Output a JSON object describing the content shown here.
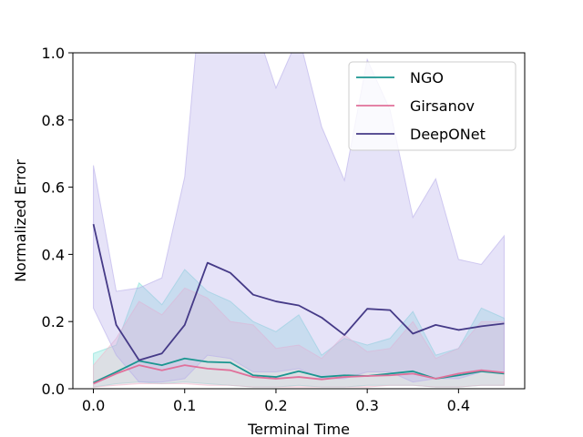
{
  "chart_data": {
    "type": "line",
    "xlabel": "Terminal Time",
    "ylabel": "Normalized Error",
    "xlim": [
      -0.0225,
      0.4725
    ],
    "ylim": [
      0,
      1.0
    ],
    "xticks": [
      0.0,
      0.1,
      0.2,
      0.3,
      0.4
    ],
    "xtick_labels": [
      "0.0",
      "0.1",
      "0.2",
      "0.3",
      "0.4"
    ],
    "yticks": [
      0.0,
      0.2,
      0.4,
      0.6,
      0.8,
      1.0
    ],
    "ytick_labels": [
      "0.0",
      "0.2",
      "0.4",
      "0.6",
      "0.8",
      "1.0"
    ],
    "grid": false,
    "legend_position": "top-right",
    "x": [
      0.0,
      0.025,
      0.05,
      0.075,
      0.1,
      0.125,
      0.15,
      0.175,
      0.2,
      0.225,
      0.25,
      0.275,
      0.3,
      0.325,
      0.35,
      0.375,
      0.4,
      0.425,
      0.45
    ],
    "series": [
      {
        "name": "NGO",
        "color": "#1a9690",
        "band_color": "#7fe0d8",
        "values": [
          0.018,
          0.05,
          0.083,
          0.07,
          0.09,
          0.08,
          0.078,
          0.04,
          0.035,
          0.052,
          0.035,
          0.04,
          0.038,
          0.045,
          0.052,
          0.03,
          0.04,
          0.052,
          0.045
        ],
        "upper": [
          0.105,
          0.13,
          0.315,
          0.25,
          0.355,
          0.29,
          0.26,
          0.2,
          0.17,
          0.22,
          0.1,
          0.15,
          0.13,
          0.15,
          0.23,
          0.1,
          0.12,
          0.24,
          0.21
        ],
        "lower": [
          0.005,
          0.015,
          0.02,
          0.015,
          0.02,
          0.015,
          0.01,
          0.005,
          0.005,
          0.01,
          0.005,
          0.005,
          0.01,
          0.01,
          0.01,
          0.005,
          0.005,
          0.01,
          0.01
        ]
      },
      {
        "name": "Girsanov",
        "color": "#e0709a",
        "band_color": "#f2b8cc",
        "values": [
          0.015,
          0.045,
          0.07,
          0.055,
          0.07,
          0.06,
          0.055,
          0.035,
          0.03,
          0.035,
          0.028,
          0.035,
          0.038,
          0.04,
          0.045,
          0.03,
          0.045,
          0.055,
          0.048
        ],
        "upper": [
          0.07,
          0.15,
          0.26,
          0.22,
          0.3,
          0.27,
          0.2,
          0.19,
          0.12,
          0.13,
          0.09,
          0.16,
          0.11,
          0.12,
          0.2,
          0.09,
          0.12,
          0.2,
          0.2
        ],
        "lower": [
          0.005,
          0.01,
          0.015,
          0.015,
          0.015,
          0.01,
          0.01,
          0.005,
          0.005,
          0.005,
          0.005,
          0.005,
          0.005,
          0.01,
          0.01,
          0.005,
          0.005,
          0.01,
          0.01
        ]
      },
      {
        "name": "DeepONet",
        "color": "#453a87",
        "band_color": "#b7aeea",
        "values": [
          0.49,
          0.19,
          0.085,
          0.105,
          0.19,
          0.375,
          0.345,
          0.28,
          0.26,
          0.248,
          0.212,
          0.16,
          0.238,
          0.234,
          0.164,
          0.19,
          0.175,
          0.186,
          0.194
        ],
        "upper": [
          0.665,
          0.29,
          0.3,
          0.33,
          0.63,
          1.4,
          1.35,
          1.1,
          0.895,
          1.05,
          0.78,
          0.62,
          0.98,
          0.83,
          0.51,
          0.625,
          0.385,
          0.37,
          0.455
        ],
        "lower": [
          0.24,
          0.1,
          0.02,
          0.02,
          0.03,
          0.1,
          0.09,
          0.05,
          0.05,
          0.06,
          0.03,
          0.03,
          0.05,
          0.05,
          0.02,
          0.03,
          0.03,
          0.05,
          0.05
        ]
      }
    ]
  }
}
